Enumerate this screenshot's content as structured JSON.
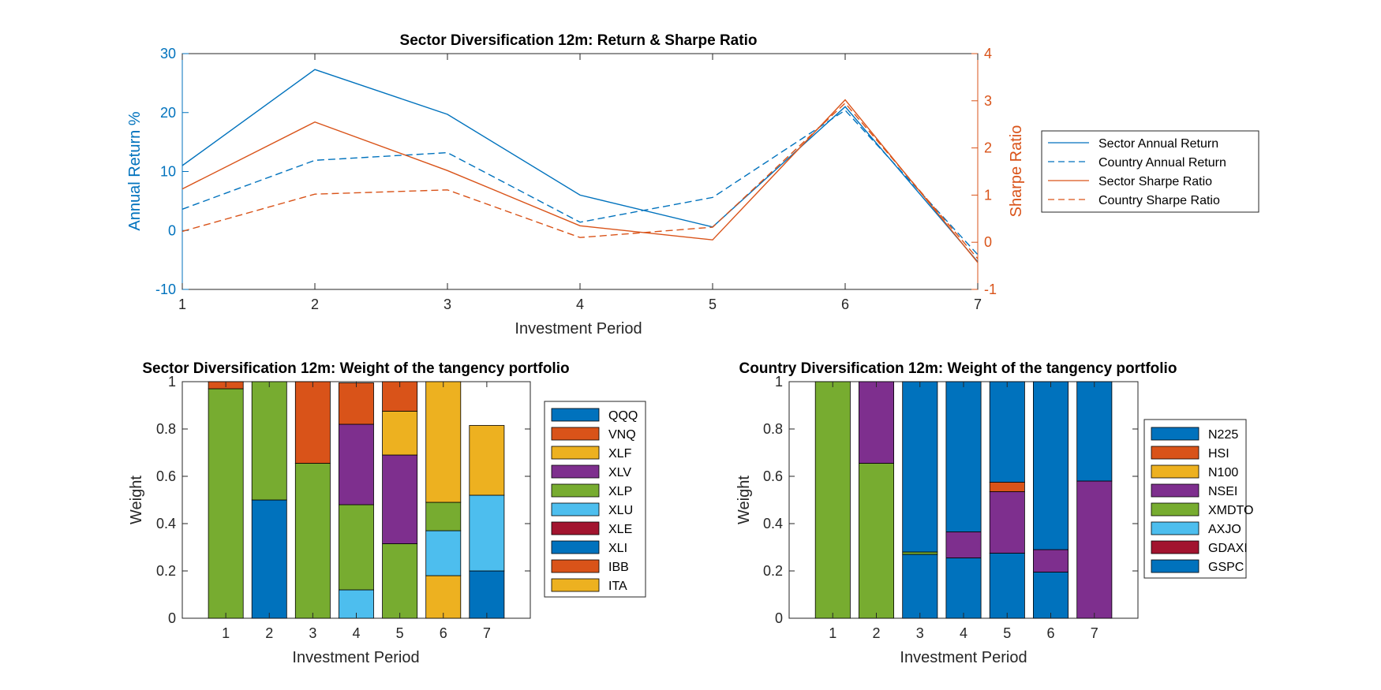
{
  "colors": {
    "blue": "#0072BD",
    "orange": "#D95319",
    "yellow": "#EDB120",
    "purple": "#7E2F8E",
    "green": "#77AC30",
    "cyan": "#4DBEEE",
    "darkred": "#A2142F",
    "axis": "#262626"
  },
  "chart_data": [
    {
      "type": "line",
      "title": "Sector Diversification 12m: Return & Sharpe Ratio",
      "xlabel": "Investment Period",
      "ylabel": "Annual Return %",
      "y2label": "Sharpe Ratio",
      "x": [
        1,
        2,
        3,
        4,
        5,
        6,
        7
      ],
      "xlim": [
        1,
        7
      ],
      "ylim": [
        -10,
        30
      ],
      "y2lim": [
        -1,
        4
      ],
      "xticks": [
        "1",
        "2",
        "3",
        "4",
        "5",
        "6",
        "7"
      ],
      "yticks": [
        "-10",
        "0",
        "10",
        "20",
        "30"
      ],
      "y2ticks": [
        "-1",
        "0",
        "1",
        "2",
        "3",
        "4"
      ],
      "grid": false,
      "legend_position": "right",
      "series": [
        {
          "name": "Sector Annual Return",
          "axis": "left",
          "style": "solid",
          "color": "#0072BD",
          "values": [
            11.0,
            27.3,
            19.7,
            6.0,
            0.6,
            21.0,
            -5.3
          ]
        },
        {
          "name": "Country Annual Return",
          "axis": "left",
          "style": "dashed",
          "color": "#0072BD",
          "values": [
            3.6,
            11.9,
            13.2,
            1.4,
            5.6,
            20.4,
            -4.1
          ]
        },
        {
          "name": "Sector Sharpe Ratio",
          "axis": "right",
          "style": "solid",
          "color": "#D95319",
          "values": [
            1.13,
            2.55,
            1.52,
            0.35,
            0.05,
            3.02,
            -0.43
          ]
        },
        {
          "name": "Country Sharpe Ratio",
          "axis": "right",
          "style": "dashed",
          "color": "#D95319",
          "values": [
            0.23,
            1.02,
            1.11,
            0.1,
            0.32,
            2.95,
            -0.35
          ]
        }
      ]
    },
    {
      "type": "bar",
      "stacked": true,
      "title": "Sector Diversification 12m: Weight of the tangency portfolio",
      "xlabel": "Investment Period",
      "ylabel": "Weight",
      "categories": [
        "1",
        "2",
        "3",
        "4",
        "5",
        "6",
        "7"
      ],
      "ylim": [
        0,
        1
      ],
      "yticks": [
        "0",
        "0.2",
        "0.4",
        "0.6",
        "0.8",
        "1"
      ],
      "legend_position": "right",
      "legend_order": [
        "QQQ",
        "VNQ",
        "XLF",
        "XLV",
        "XLP",
        "XLU",
        "XLE",
        "XLI",
        "IBB",
        "ITA"
      ],
      "series": [
        {
          "name": "ITA",
          "color": "#EDB120",
          "values": [
            0,
            0,
            0,
            0,
            0,
            0.18,
            0
          ]
        },
        {
          "name": "IBB",
          "color": "#D95319",
          "values": [
            0,
            0,
            0,
            0,
            0,
            0,
            0
          ]
        },
        {
          "name": "XLI",
          "color": "#0072BD",
          "values": [
            0,
            0.5,
            0,
            0,
            0,
            0,
            0.2
          ]
        },
        {
          "name": "XLE",
          "color": "#A2142F",
          "values": [
            0,
            0,
            0,
            0,
            0,
            0,
            0
          ]
        },
        {
          "name": "XLU",
          "color": "#4DBEEE",
          "values": [
            0,
            0,
            0,
            0.12,
            0,
            0.19,
            0.32
          ]
        },
        {
          "name": "XLP",
          "color": "#77AC30",
          "values": [
            0.97,
            0.5,
            0.655,
            0.36,
            0.315,
            0.12,
            0
          ]
        },
        {
          "name": "XLV",
          "color": "#7E2F8E",
          "values": [
            0,
            0,
            0,
            0.34,
            0.375,
            0,
            0
          ]
        },
        {
          "name": "XLF",
          "color": "#EDB120",
          "values": [
            0,
            0,
            0,
            0,
            0.185,
            0.51,
            0.295
          ]
        },
        {
          "name": "VNQ",
          "color": "#D95319",
          "values": [
            0.03,
            0,
            0.345,
            0.175,
            0.125,
            0,
            0
          ]
        },
        {
          "name": "QQQ",
          "color": "#0072BD",
          "values": [
            0,
            0,
            0,
            0,
            0,
            0,
            0
          ]
        }
      ]
    },
    {
      "type": "bar",
      "stacked": true,
      "title": "Country Diversification 12m: Weight of the tangency portfolio",
      "xlabel": "Investment Period",
      "ylabel": "Weight",
      "categories": [
        "1",
        "2",
        "3",
        "4",
        "5",
        "6",
        "7"
      ],
      "ylim": [
        0,
        1
      ],
      "yticks": [
        "0",
        "0.2",
        "0.4",
        "0.6",
        "0.8",
        "1"
      ],
      "legend_position": "right",
      "legend_order": [
        "N225",
        "HSI",
        "N100",
        "NSEI",
        "XMDTO",
        "AXJO",
        "GDAXI",
        "GSPC"
      ],
      "series": [
        {
          "name": "GSPC",
          "color": "#0072BD",
          "values": [
            0,
            0,
            0.27,
            0.255,
            0.275,
            0.195,
            0
          ]
        },
        {
          "name": "GDAXI",
          "color": "#A2142F",
          "values": [
            0,
            0,
            0,
            0,
            0,
            0,
            0
          ]
        },
        {
          "name": "AXJO",
          "color": "#4DBEEE",
          "values": [
            0,
            0,
            0,
            0,
            0,
            0,
            0
          ]
        },
        {
          "name": "XMDTO",
          "color": "#77AC30",
          "values": [
            1.0,
            0.655,
            0.01,
            0,
            0,
            0,
            0
          ]
        },
        {
          "name": "NSEI",
          "color": "#7E2F8E",
          "values": [
            0,
            0.345,
            0,
            0.11,
            0.26,
            0.095,
            0.58
          ]
        },
        {
          "name": "N100",
          "color": "#EDB120",
          "values": [
            0,
            0,
            0,
            0,
            0,
            0,
            0
          ]
        },
        {
          "name": "HSI",
          "color": "#D95319",
          "values": [
            0,
            0,
            0,
            0,
            0.04,
            0,
            0
          ]
        },
        {
          "name": "N225",
          "color": "#0072BD",
          "values": [
            0,
            0,
            0.72,
            0.635,
            0.425,
            0.71,
            0.42
          ]
        }
      ]
    }
  ]
}
